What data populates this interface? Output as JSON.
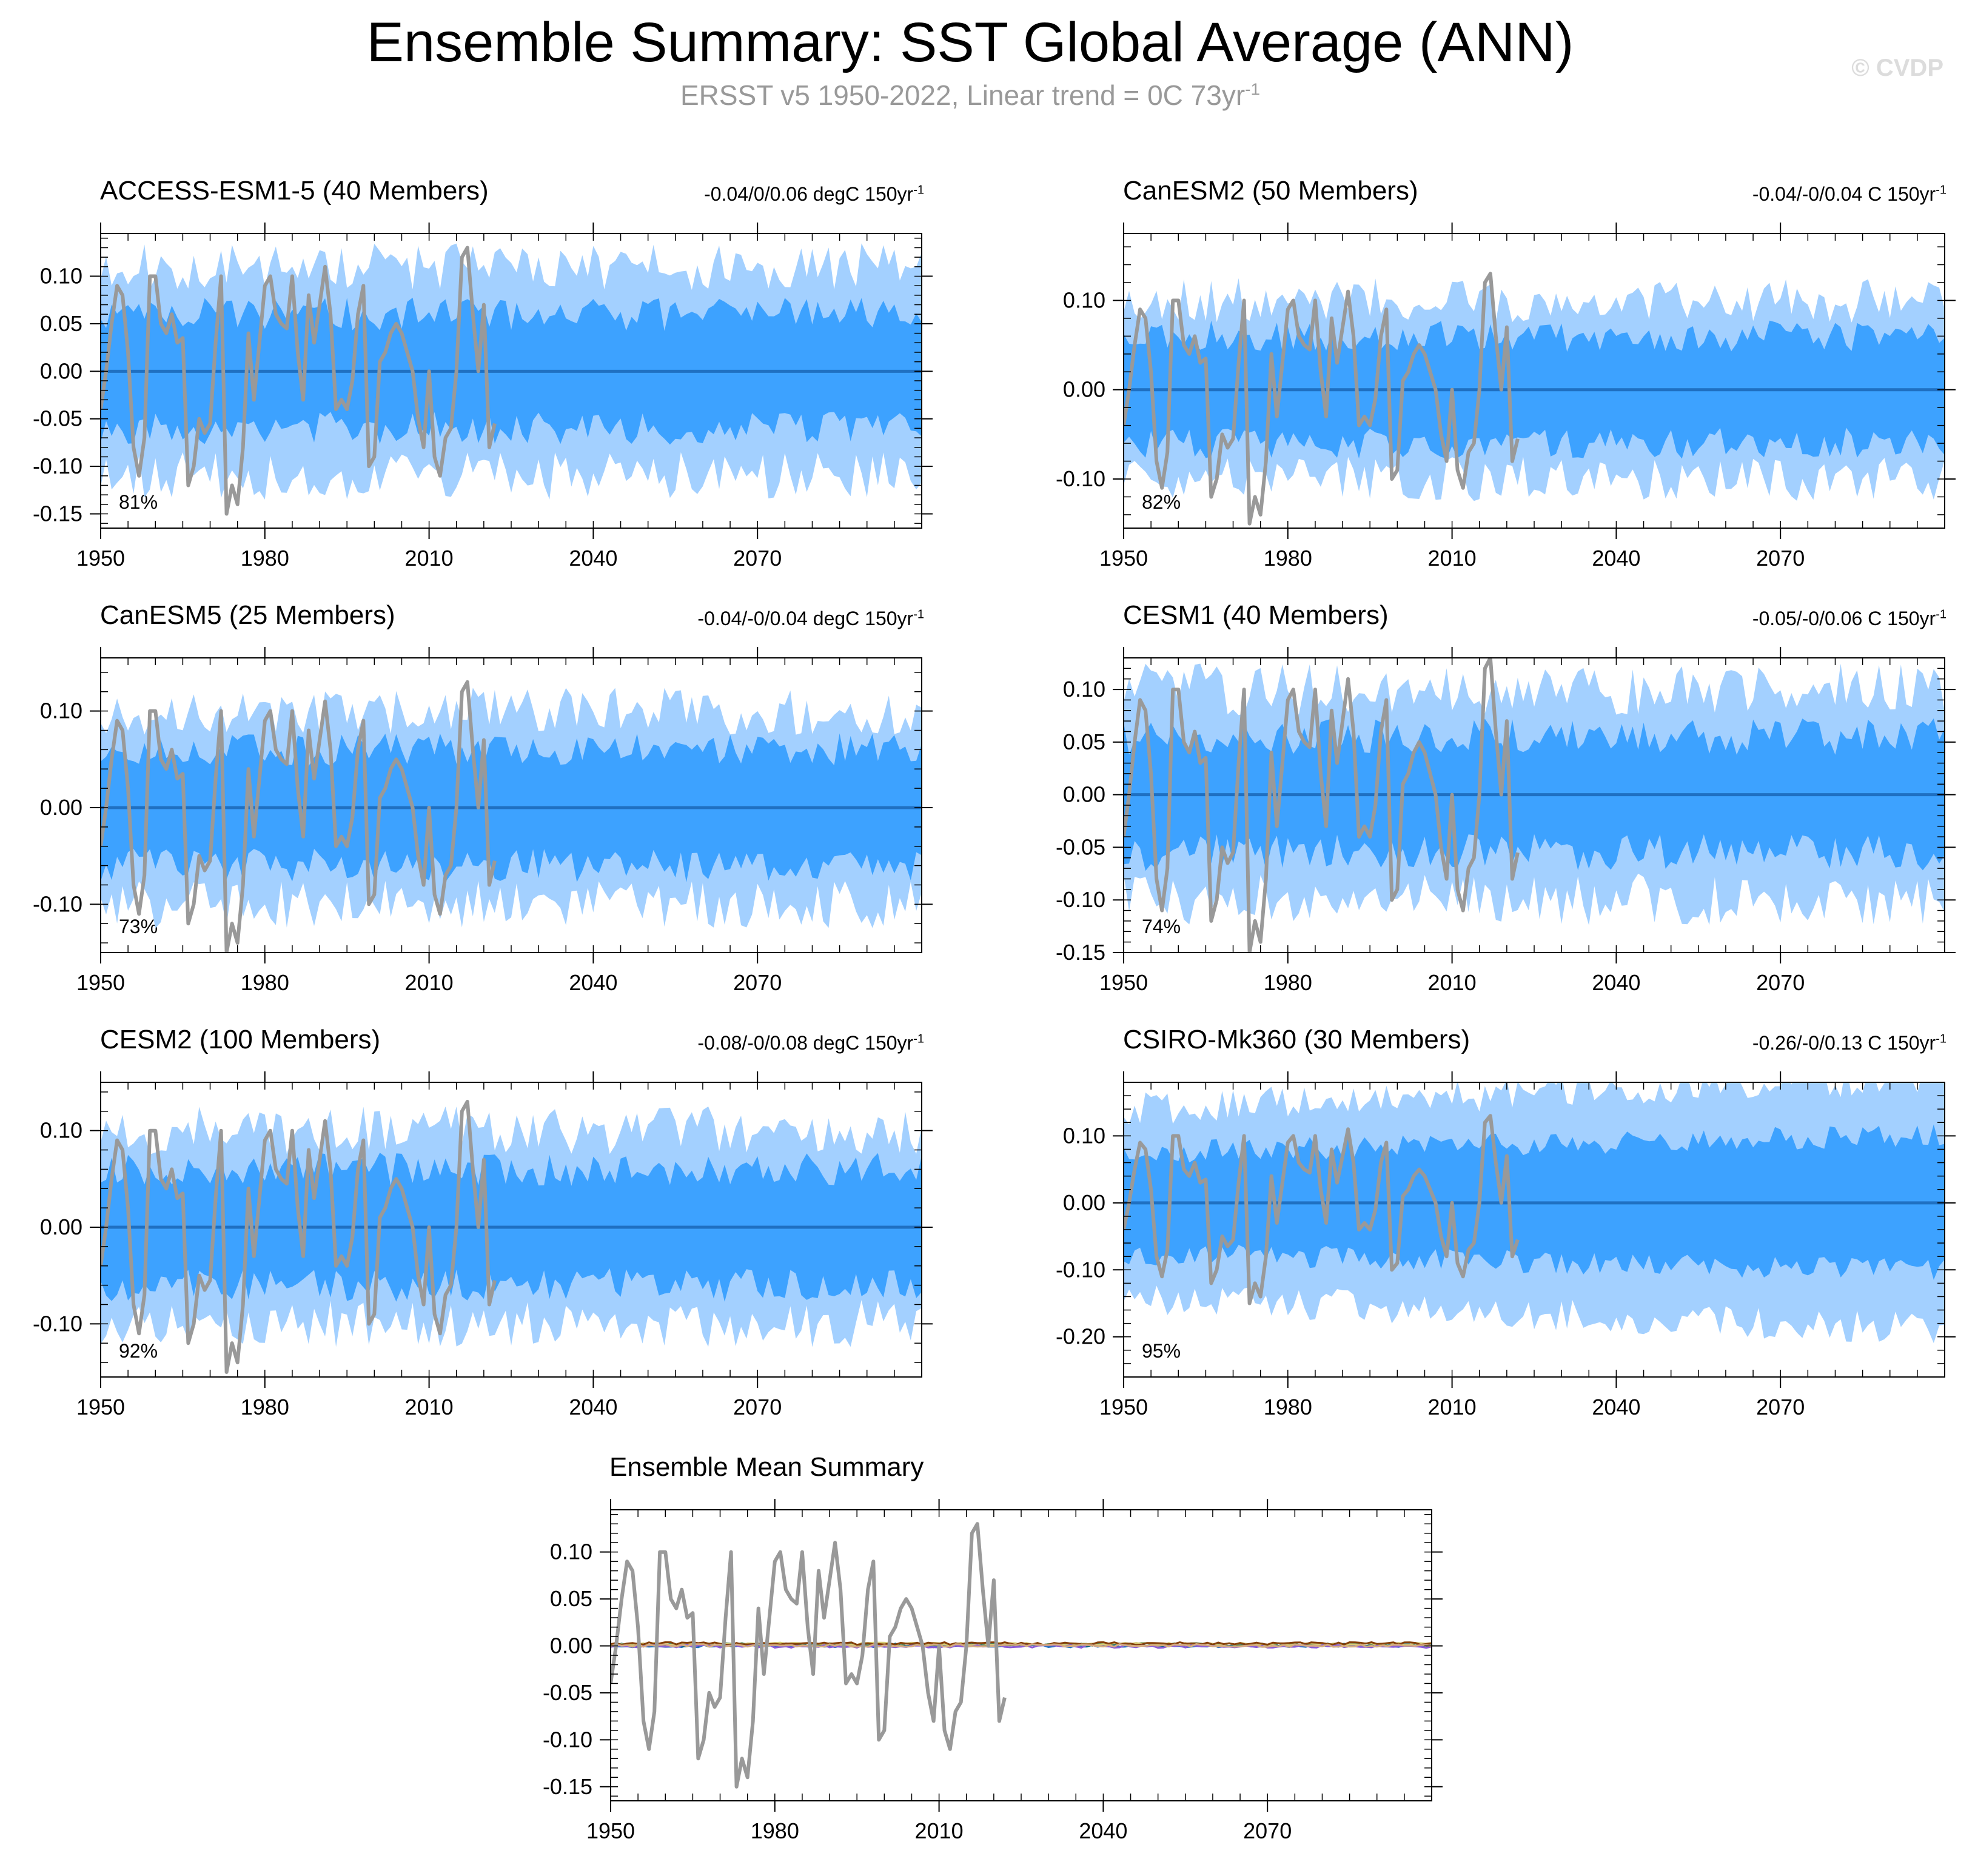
{
  "header": {
    "title": "Ensemble Summary: SST Global Average (ANN)",
    "subtitle_main": "ERSST v5 1950-2022, Linear trend = 0C 73yr",
    "subtitle_sup": "-1",
    "copyright": "© CVDP"
  },
  "colors": {
    "outer_band": "#a3d0ff",
    "inner_band": "#3da2ff",
    "ensemble_mean": "#1f70c2",
    "observation": "#999999",
    "axis": "#000000"
  },
  "chart_data": {
    "type": "area",
    "observation": {
      "name": "ERSST v5",
      "years": [
        1950,
        1951,
        1952,
        1953,
        1954,
        1955,
        1956,
        1957,
        1958,
        1959,
        1960,
        1961,
        1962,
        1963,
        1964,
        1965,
        1966,
        1967,
        1968,
        1969,
        1970,
        1971,
        1972,
        1973,
        1974,
        1975,
        1976,
        1977,
        1978,
        1979,
        1980,
        1981,
        1982,
        1983,
        1984,
        1985,
        1986,
        1987,
        1988,
        1989,
        1990,
        1991,
        1992,
        1993,
        1994,
        1995,
        1996,
        1997,
        1998,
        1999,
        2000,
        2001,
        2002,
        2003,
        2004,
        2005,
        2006,
        2007,
        2008,
        2009,
        2010,
        2011,
        2012,
        2013,
        2014,
        2015,
        2016,
        2017,
        2018,
        2019,
        2020,
        2021,
        2022
      ],
      "values": [
        -0.04,
        0.0,
        0.05,
        0.09,
        0.08,
        0.02,
        -0.08,
        -0.11,
        -0.07,
        0.1,
        0.1,
        0.05,
        0.04,
        0.06,
        0.03,
        0.035,
        -0.12,
        -0.1,
        -0.05,
        -0.065,
        -0.055,
        0.03,
        0.1,
        -0.15,
        -0.12,
        -0.14,
        -0.08,
        0.04,
        -0.03,
        0.03,
        0.09,
        0.1,
        0.06,
        0.05,
        0.045,
        0.1,
        0.02,
        -0.03,
        0.08,
        0.03,
        0.07,
        0.11,
        0.06,
        -0.04,
        -0.03,
        -0.04,
        -0.01,
        0.06,
        0.09,
        -0.1,
        -0.09,
        0.01,
        0.02,
        0.04,
        0.05,
        0.04,
        0.02,
        0.0,
        -0.05,
        -0.08,
        0.0,
        -0.09,
        -0.11,
        -0.07,
        -0.06,
        0.0,
        0.12,
        0.13,
        0.06,
        0.0,
        0.07,
        -0.08,
        -0.055
      ]
    },
    "panels": [
      {
        "name": "ACCESS-ESM1-5 (40 Members)",
        "color": "#006280",
        "trend": "-0.04/0/0.06 degC 150yr",
        "pct": "81%",
        "ylim": [
          -0.165,
          0.145
        ],
        "yticks": [
          -0.15,
          -0.1,
          -0.05,
          0.0,
          0.05,
          0.1
        ],
        "ytick_labels": [
          "-0.15",
          "-0.10",
          "-0.05",
          "0.00",
          "0.05",
          "0.10"
        ],
        "inner_amp": 0.06,
        "outer_amp": 0.11,
        "seed": 11
      },
      {
        "name": "CanESM2 (50 Members)",
        "color": "#5c8a58",
        "trend": "-0.04/-0/0.04 C 150yr",
        "pct": "82%",
        "ylim": [
          -0.155,
          0.175
        ],
        "yticks": [
          -0.1,
          0.0,
          0.1
        ],
        "ytick_labels": [
          "-0.10",
          "0.00",
          "0.10"
        ],
        "inner_amp": 0.06,
        "outer_amp": 0.1,
        "seed": 23
      },
      {
        "name": "CanESM5 (25 Members)",
        "color": "#d6cb78",
        "trend": "-0.04/-0/0.04 degC 150yr",
        "pct": "73%",
        "ylim": [
          -0.15,
          0.155
        ],
        "yticks": [
          -0.1,
          0.0,
          0.1
        ],
        "ytick_labels": [
          "-0.10",
          "0.00",
          "0.10"
        ],
        "inner_amp": 0.06,
        "outer_amp": 0.1,
        "seed": 37
      },
      {
        "name": "CESM1 (40 Members)",
        "color": "#85400a",
        "trend": "-0.05/-0/0.06 C 150yr",
        "pct": "74%",
        "ylim": [
          -0.15,
          0.13
        ],
        "yticks": [
          -0.15,
          -0.1,
          -0.05,
          0.0,
          0.05,
          0.1
        ],
        "ytick_labels": [
          "-0.15",
          "-0.10",
          "-0.05",
          "0.00",
          "0.05",
          "0.10"
        ],
        "inner_amp": 0.055,
        "outer_amp": 0.1,
        "seed": 41
      },
      {
        "name": "CESM2 (100 Members)",
        "color": "#8a5cd6",
        "trend": "-0.08/-0/0.08 degC 150yr",
        "pct": "92%",
        "ylim": [
          -0.155,
          0.15
        ],
        "yticks": [
          -0.1,
          0.0,
          0.1
        ],
        "ytick_labels": [
          "-0.10",
          "0.00",
          "0.10"
        ],
        "inner_amp": 0.06,
        "outer_amp": 0.1,
        "seed": 53
      },
      {
        "name": "CSIRO-Mk360 (30 Members)",
        "color": "#d4aa80",
        "trend": "-0.26/-0/0.13 C 150yr",
        "pct": "95%",
        "ylim": [
          -0.26,
          0.18
        ],
        "yticks": [
          -0.2,
          -0.1,
          0.0,
          0.1
        ],
        "ytick_labels": [
          "-0.20",
          "-0.10",
          "0.00",
          "0.10"
        ],
        "inner_amp": 0.075,
        "outer_amp": 0.14,
        "seed": 67
      }
    ],
    "mean_panel": {
      "title": "Ensemble Mean Summary",
      "ylim": [
        -0.165,
        0.145
      ],
      "yticks": [
        -0.15,
        -0.1,
        -0.05,
        0.0,
        0.05,
        0.1
      ],
      "ytick_labels": [
        "-0.15",
        "-0.10",
        "-0.05",
        "0.00",
        "0.05",
        "0.10"
      ],
      "series_colors": [
        "#1f70c2",
        "#006280",
        "#5c8a58",
        "#d6cb78",
        "#85400a",
        "#8a5cd6",
        "#d4aa80"
      ]
    },
    "x_range": [
      1950,
      2100
    ],
    "xticks": [
      1950,
      1980,
      2010,
      2040,
      2070
    ],
    "xtick_labels": [
      "1950",
      "1980",
      "2010",
      "2040",
      "2070"
    ],
    "xlabel": "",
    "ylabel": ""
  }
}
